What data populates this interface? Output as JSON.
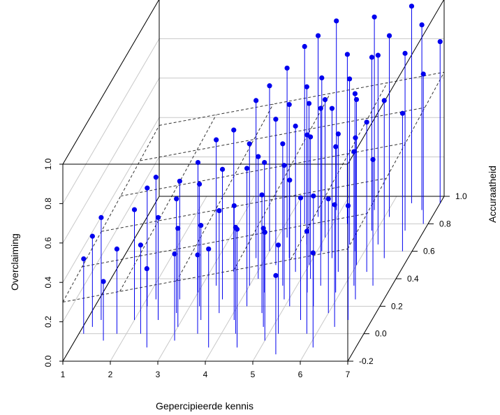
{
  "chart_data": {
    "type": "scatter",
    "subtype": "3d-scatter-with-drop-lines-and-regression-plane",
    "title": "",
    "xlabel": "Gepercipieerde kennis",
    "ylabel": "Accuraatheid",
    "zlabel": "Overclaiming",
    "xlim": [
      1,
      7
    ],
    "ylim": [
      -0.2,
      1.0
    ],
    "zlim": [
      0.0,
      1.0
    ],
    "x_ticks": [
      "1",
      "2",
      "3",
      "4",
      "5",
      "6",
      "7"
    ],
    "y_ticks": [
      "-0.2",
      "0.0",
      "0.2",
      "0.4",
      "0.6",
      "0.8",
      "1.0"
    ],
    "z_ticks": [
      "0.0",
      "0.2",
      "0.4",
      "0.6",
      "0.8",
      "1.0"
    ],
    "grid": true,
    "point_color": "#0000ee",
    "plane_color": "#333333",
    "plane": {
      "intercept": 0.3,
      "slope_x": 0.045,
      "slope_y": 0.05
    },
    "points": [
      {
        "x": 1.1,
        "y": 0.0,
        "z": 0.38
      },
      {
        "x": 1.2,
        "y": 0.05,
        "z": 0.46
      },
      {
        "x": 1.3,
        "y": 0.1,
        "z": 0.52
      },
      {
        "x": 1.6,
        "y": -0.05,
        "z": 0.3
      },
      {
        "x": 1.8,
        "y": 0.0,
        "z": 0.43
      },
      {
        "x": 2.0,
        "y": 0.1,
        "z": 0.56
      },
      {
        "x": 2.1,
        "y": 0.2,
        "z": 0.6
      },
      {
        "x": 2.2,
        "y": 0.25,
        "z": 0.62
      },
      {
        "x": 2.3,
        "y": 0.0,
        "z": 0.45
      },
      {
        "x": 2.5,
        "y": 0.1,
        "z": 0.52
      },
      {
        "x": 2.6,
        "y": -0.1,
        "z": 0.4
      },
      {
        "x": 2.7,
        "y": 0.25,
        "z": 0.6
      },
      {
        "x": 2.8,
        "y": 0.15,
        "z": 0.58
      },
      {
        "x": 3.0,
        "y": 0.05,
        "z": 0.5
      },
      {
        "x": 3.0,
        "y": 0.3,
        "z": 0.66
      },
      {
        "x": 3.1,
        "y": -0.05,
        "z": 0.44
      },
      {
        "x": 3.2,
        "y": 0.2,
        "z": 0.62
      },
      {
        "x": 3.3,
        "y": 0.35,
        "z": 0.74
      },
      {
        "x": 3.4,
        "y": 0.1,
        "z": 0.48
      },
      {
        "x": 3.5,
        "y": 0.45,
        "z": 0.72
      },
      {
        "x": 3.5,
        "y": 0.0,
        "z": 0.4
      },
      {
        "x": 3.6,
        "y": 0.25,
        "z": 0.66
      },
      {
        "x": 3.7,
        "y": 0.15,
        "z": 0.52
      },
      {
        "x": 3.8,
        "y": 0.55,
        "z": 0.8
      },
      {
        "x": 3.9,
        "y": -0.1,
        "z": 0.5
      },
      {
        "x": 4.0,
        "y": 0.35,
        "z": 0.72
      },
      {
        "x": 4.0,
        "y": 0.6,
        "z": 0.84
      },
      {
        "x": 4.1,
        "y": 0.1,
        "z": 0.58
      },
      {
        "x": 4.1,
        "y": 0.4,
        "z": 0.62
      },
      {
        "x": 4.2,
        "y": 0.2,
        "z": 0.7
      },
      {
        "x": 4.2,
        "y": 0.7,
        "z": 0.86
      },
      {
        "x": 4.3,
        "y": 0.0,
        "z": 0.54
      },
      {
        "x": 4.3,
        "y": 0.5,
        "z": 0.74
      },
      {
        "x": 4.4,
        "y": 0.3,
        "z": 0.66
      },
      {
        "x": 4.4,
        "y": 0.8,
        "z": 0.9
      },
      {
        "x": 4.5,
        "y": -0.1,
        "z": 0.6
      },
      {
        "x": 4.5,
        "y": 0.55,
        "z": 0.78
      },
      {
        "x": 4.6,
        "y": 0.15,
        "z": 0.6
      },
      {
        "x": 4.6,
        "y": 0.85,
        "z": 0.92
      },
      {
        "x": 4.7,
        "y": 0.35,
        "z": 0.72
      },
      {
        "x": 4.7,
        "y": 0.65,
        "z": 0.8
      },
      {
        "x": 4.8,
        "y": 0.05,
        "z": 0.5
      },
      {
        "x": 4.8,
        "y": 0.45,
        "z": 0.74
      },
      {
        "x": 4.9,
        "y": 0.25,
        "z": 0.68
      },
      {
        "x": 4.9,
        "y": 0.9,
        "z": 0.96
      },
      {
        "x": 5.0,
        "y": -0.05,
        "z": 0.55
      },
      {
        "x": 5.0,
        "y": 0.5,
        "z": 0.82
      },
      {
        "x": 5.0,
        "y": 0.7,
        "z": 0.7
      },
      {
        "x": 5.1,
        "y": 0.2,
        "z": 0.64
      },
      {
        "x": 5.1,
        "y": 0.6,
        "z": 0.88
      },
      {
        "x": 5.2,
        "y": 0.0,
        "z": 0.45
      },
      {
        "x": 5.2,
        "y": 0.4,
        "z": 0.72
      },
      {
        "x": 5.3,
        "y": 0.3,
        "z": 0.8
      },
      {
        "x": 5.3,
        "y": 0.8,
        "z": 0.86
      },
      {
        "x": 5.4,
        "y": -0.15,
        "z": 0.4
      },
      {
        "x": 5.4,
        "y": 0.55,
        "z": 0.76
      },
      {
        "x": 5.5,
        "y": 0.1,
        "z": 0.62
      },
      {
        "x": 5.5,
        "y": 0.35,
        "z": 0.9
      },
      {
        "x": 5.6,
        "y": 0.65,
        "z": 0.84
      },
      {
        "x": 5.6,
        "y": 0.2,
        "z": 0.56
      },
      {
        "x": 5.7,
        "y": 0.45,
        "z": 0.7
      },
      {
        "x": 5.7,
        "y": 0.9,
        "z": 0.98
      },
      {
        "x": 5.8,
        "y": 0.0,
        "z": 0.52
      },
      {
        "x": 5.8,
        "y": 0.6,
        "z": 0.8
      },
      {
        "x": 5.9,
        "y": 0.3,
        "z": 0.74
      },
      {
        "x": 5.9,
        "y": 0.75,
        "z": 0.88
      },
      {
        "x": 6.0,
        "y": 0.15,
        "z": 0.58
      },
      {
        "x": 6.0,
        "y": 0.5,
        "z": 0.84
      },
      {
        "x": 6.1,
        "y": -0.1,
        "z": 0.48
      },
      {
        "x": 6.1,
        "y": 0.85,
        "z": 0.92
      },
      {
        "x": 6.2,
        "y": 0.35,
        "z": 0.68
      },
      {
        "x": 6.2,
        "y": 0.65,
        "z": 0.96
      },
      {
        "x": 6.3,
        "y": 0.05,
        "z": 0.62
      },
      {
        "x": 6.3,
        "y": 0.45,
        "z": 0.76
      },
      {
        "x": 6.4,
        "y": 0.25,
        "z": 0.82
      },
      {
        "x": 6.4,
        "y": 0.95,
        "z": 1.0
      },
      {
        "x": 6.5,
        "y": 0.55,
        "z": 0.8
      },
      {
        "x": 6.5,
        "y": 0.1,
        "z": 0.58
      },
      {
        "x": 6.6,
        "y": 0.75,
        "z": 0.9
      },
      {
        "x": 6.6,
        "y": 0.35,
        "z": 0.64
      },
      {
        "x": 6.7,
        "y": 0.9,
        "z": 0.94
      },
      {
        "x": 6.8,
        "y": 0.6,
        "z": 0.7
      },
      {
        "x": 6.9,
        "y": 0.8,
        "z": 0.76
      },
      {
        "x": 7.0,
        "y": 0.95,
        "z": 0.82
      }
    ]
  }
}
